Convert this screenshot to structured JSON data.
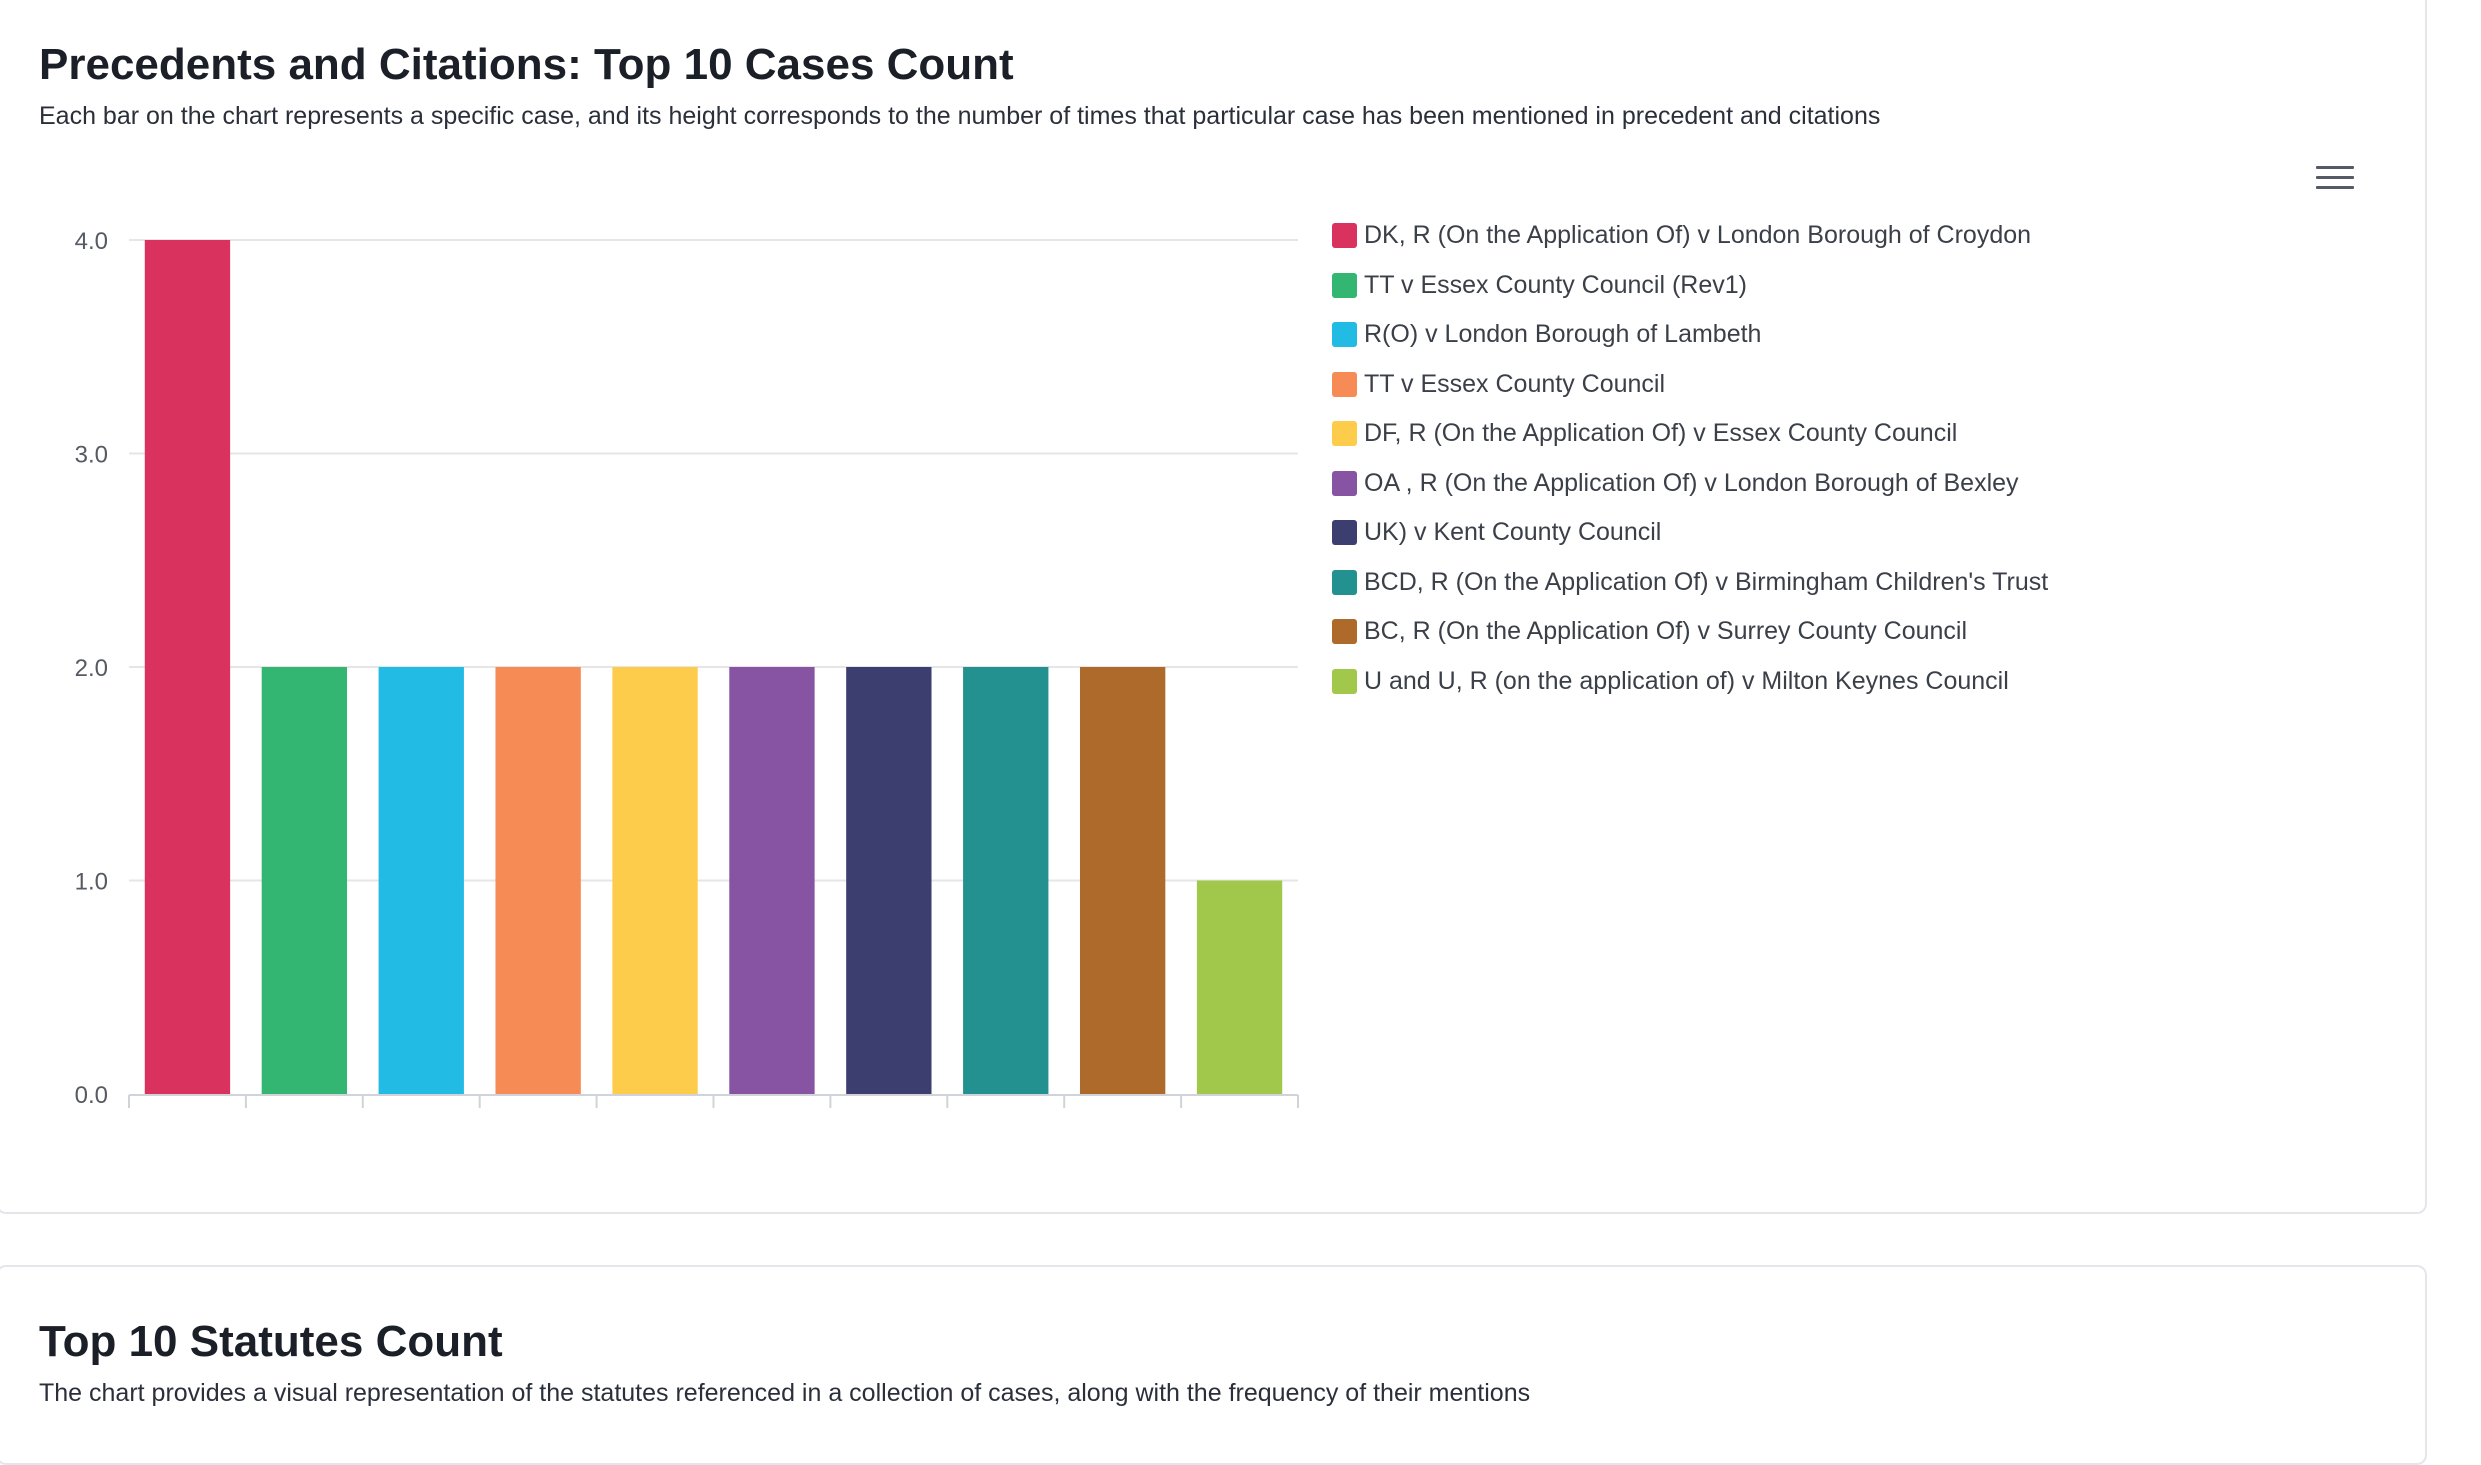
{
  "sections": [
    {
      "title": "Precedents and Citations: Top 10 Cases Count",
      "description": "Each bar on the chart represents a specific case, and its height corresponds to the number of times that particular case has been mentioned in precedent and citations"
    },
    {
      "title": "Top 10 Statutes Count",
      "description": "The chart provides a visual representation of the statutes referenced in a collection of cases, along with the frequency of their mentions"
    }
  ],
  "chart_data": {
    "type": "bar",
    "title": "Precedents and Citations: Top 10 Cases Count",
    "ylim": [
      0,
      4
    ],
    "y_ticks": [
      "0.0",
      "1.0",
      "2.0",
      "3.0",
      "4.0"
    ],
    "grid": true,
    "legend_position": "right",
    "series": [
      {
        "name": "DK, R (On the Application Of) v London Borough of Croydon",
        "value": 4,
        "color": "#d9325e"
      },
      {
        "name": "TT v Essex County Council (Rev1)",
        "value": 2,
        "color": "#33b672"
      },
      {
        "name": "R(O) v London Borough of Lambeth",
        "value": 2,
        "color": "#22bbe4"
      },
      {
        "name": "TT v Essex County Council",
        "value": 2,
        "color": "#f68b55"
      },
      {
        "name": "DF, R (On the Application Of) v Essex County Council",
        "value": 2,
        "color": "#fecc4b"
      },
      {
        "name": "OA , R (On the Application Of) v London Borough of Bexley",
        "value": 2,
        "color": "#8754a3"
      },
      {
        "name": "UK) v Kent County Council",
        "value": 2,
        "color": "#3b3e6e"
      },
      {
        "name": "BCD, R (On the Application Of) v Birmingham Children's Trust",
        "value": 2,
        "color": "#23918f"
      },
      {
        "name": "BC, R (On the Application Of) v Surrey County Council",
        "value": 2,
        "color": "#ad6a2b"
      },
      {
        "name": "U and U, R (on the application of) v Milton Keynes Council",
        "value": 1,
        "color": "#a1c84a"
      }
    ]
  }
}
